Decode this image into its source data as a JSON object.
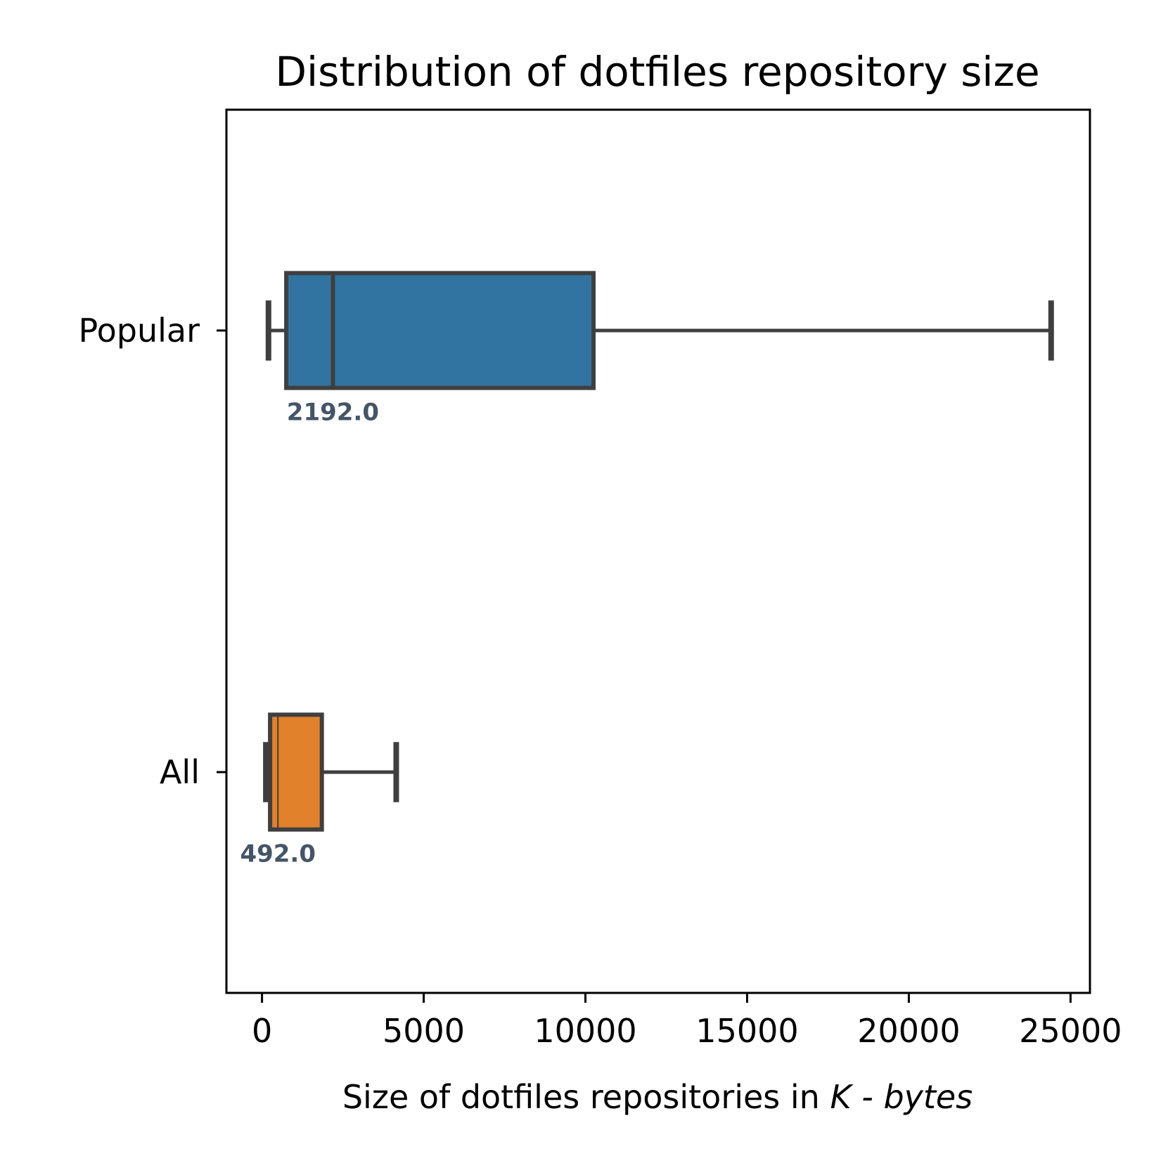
{
  "chart_data": {
    "type": "boxplot",
    "orientation": "horizontal",
    "title": "Distribution of dotfiles repository size",
    "xlabel": {
      "prefix": "Size of dotfiles repositories in ",
      "math": "K - bytes"
    },
    "ylabel": "",
    "xlim": [
      -1100,
      25600
    ],
    "xticks": [
      0,
      5000,
      10000,
      15000,
      20000,
      25000
    ],
    "xtick_labels": [
      "0",
      "5000",
      "10000",
      "15000",
      "20000",
      "25000"
    ],
    "grid": false,
    "categories": [
      "Popular",
      "All"
    ],
    "boxes": [
      {
        "category": "Popular",
        "whisker_low": 200,
        "q1": 750,
        "median": 2192.0,
        "q3": 10250,
        "whisker_high": 24400,
        "median_label": "2192.0",
        "color": "#3274a1"
      },
      {
        "category": "All",
        "whisker_low": 120,
        "q1": 250,
        "median": 492.0,
        "q3": 1850,
        "whisker_high": 4150,
        "median_label": "492.0",
        "color": "#e1812c"
      }
    ],
    "line_color": "#3f3f3f"
  }
}
